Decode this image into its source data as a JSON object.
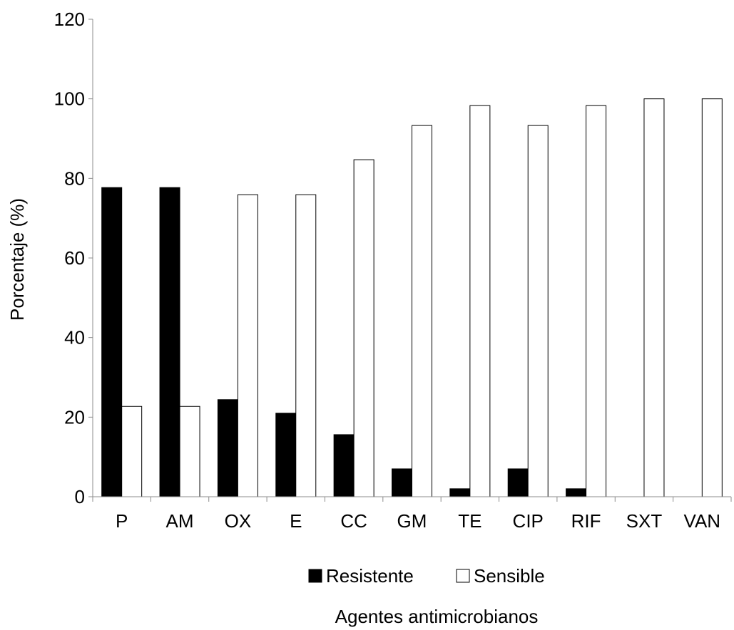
{
  "chart_data": {
    "type": "bar",
    "categories": [
      "P",
      "AM",
      "OX",
      "E",
      "CC",
      "GM",
      "TE",
      "CIP",
      "RIF",
      "SXT",
      "VAN"
    ],
    "series": [
      {
        "name": "Resistente",
        "color": "#000000",
        "values": [
          77.7,
          77.7,
          24.4,
          21.0,
          15.6,
          7.0,
          2.0,
          7.0,
          2.0,
          0,
          0
        ]
      },
      {
        "name": "Sensible",
        "color": "#ffffff",
        "values": [
          22.7,
          22.7,
          75.9,
          75.9,
          84.7,
          93.3,
          98.3,
          93.3,
          98.3,
          100,
          100
        ]
      }
    ],
    "ylabel": "Porcentaje (%)",
    "xlabel": "Agentes antimicrobianos",
    "ylim": [
      0,
      120
    ],
    "yticks": [
      0,
      20,
      40,
      60,
      80,
      100,
      120
    ],
    "grid": false,
    "legend_position": "bottom"
  }
}
